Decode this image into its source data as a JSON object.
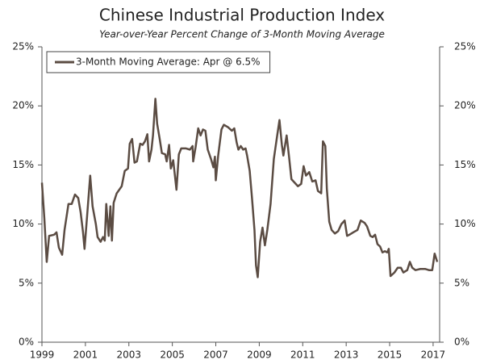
{
  "chart_data": {
    "type": "line",
    "title": "Chinese Industrial Production Index",
    "subtitle": "Year-over-Year Percent Change of 3-Month Moving Average",
    "x": [
      1999.0,
      1999.11,
      1999.22,
      1999.33,
      1999.56,
      1999.67,
      1999.78,
      1999.93,
      2000.04,
      2000.22,
      2000.37,
      2000.52,
      2000.67,
      2000.78,
      2000.89,
      2000.96,
      2001.07,
      2001.22,
      2001.33,
      2001.48,
      2001.56,
      2001.7,
      2001.81,
      2001.89,
      2001.96,
      2002.07,
      2002.15,
      2002.22,
      2002.3,
      2002.44,
      2002.67,
      2002.81,
      2002.96,
      2003.04,
      2003.15,
      2003.26,
      2003.37,
      2003.52,
      2003.63,
      2003.74,
      2003.85,
      2003.93,
      2004.04,
      2004.11,
      2004.22,
      2004.3,
      2004.41,
      2004.52,
      2004.67,
      2004.74,
      2004.85,
      2004.93,
      2005.04,
      2005.19,
      2005.3,
      2005.41,
      2005.63,
      2005.81,
      2005.93,
      2005.96,
      2006.07,
      2006.19,
      2006.3,
      2006.41,
      2006.52,
      2006.63,
      2006.78,
      2006.89,
      2006.96,
      2007.0,
      2007.11,
      2007.26,
      2007.37,
      2007.56,
      2007.74,
      2007.85,
      2007.96,
      2008.04,
      2008.15,
      2008.26,
      2008.37,
      2008.44,
      2008.56,
      2008.67,
      2008.78,
      2008.85,
      2008.93,
      2009.04,
      2009.15,
      2009.26,
      2009.37,
      2009.52,
      2009.67,
      2009.81,
      2009.93,
      2010.04,
      2010.11,
      2010.26,
      2010.37,
      2010.48,
      2010.63,
      2010.78,
      2010.93,
      2011.04,
      2011.15,
      2011.3,
      2011.44,
      2011.59,
      2011.7,
      2011.85,
      2011.93,
      2012.04,
      2012.11,
      2012.22,
      2012.33,
      2012.48,
      2012.63,
      2012.78,
      2012.93,
      2013.04,
      2013.15,
      2013.33,
      2013.52,
      2013.67,
      2013.85,
      2013.96,
      2014.11,
      2014.22,
      2014.33,
      2014.44,
      2014.56,
      2014.67,
      2014.78,
      2014.89,
      2014.96,
      2015.04,
      2015.22,
      2015.37,
      2015.52,
      2015.63,
      2015.81,
      2015.93,
      2016.04,
      2016.19,
      2016.41,
      2016.63,
      2016.81,
      2016.96,
      2017.07,
      2017.19
    ],
    "series": [
      {
        "name": "3-Month Moving Average: Apr @ 6.5%",
        "color": "#5b4c43",
        "values": [
          13.5,
          10.5,
          6.8,
          9.0,
          9.1,
          9.3,
          8.0,
          7.4,
          9.5,
          11.7,
          11.7,
          12.5,
          12.2,
          11.0,
          9.3,
          7.9,
          10.5,
          14.1,
          11.5,
          10.0,
          8.9,
          8.5,
          8.9,
          8.6,
          11.7,
          9.0,
          11.5,
          8.6,
          11.8,
          12.6,
          13.2,
          14.5,
          14.7,
          16.8,
          17.2,
          15.2,
          15.3,
          16.8,
          16.7,
          17.0,
          17.6,
          15.3,
          16.3,
          17.5,
          20.6,
          18.5,
          17.3,
          16.0,
          15.9,
          15.3,
          16.7,
          14.7,
          15.4,
          12.9,
          15.9,
          16.4,
          16.4,
          16.3,
          16.6,
          15.3,
          16.5,
          18.1,
          17.5,
          18.0,
          17.9,
          16.3,
          15.5,
          14.8,
          15.7,
          13.7,
          15.8,
          18.0,
          18.4,
          18.2,
          17.9,
          18.1,
          16.9,
          16.3,
          16.6,
          16.3,
          16.4,
          15.8,
          14.5,
          12.1,
          9.5,
          6.5,
          5.5,
          8.5,
          9.7,
          8.2,
          9.5,
          11.7,
          15.5,
          17.3,
          18.8,
          16.7,
          15.8,
          17.5,
          15.7,
          13.8,
          13.5,
          13.2,
          13.4,
          14.9,
          14.1,
          14.4,
          13.6,
          13.7,
          12.8,
          12.6,
          17.0,
          16.6,
          13.0,
          10.2,
          9.5,
          9.2,
          9.4,
          10.0,
          10.3,
          9.0,
          9.1,
          9.3,
          9.5,
          10.3,
          10.1,
          9.8,
          9.0,
          8.9,
          9.1,
          8.3,
          8.1,
          7.6,
          7.7,
          7.6,
          7.9,
          5.6,
          5.9,
          6.3,
          6.3,
          5.9,
          6.1,
          6.8,
          6.3,
          6.1,
          6.2,
          6.2,
          6.1,
          6.1,
          7.5,
          6.8
        ]
      }
    ],
    "xlim": [
      1999,
      2017.3
    ],
    "xticks": [
      1999,
      2001,
      2003,
      2005,
      2007,
      2009,
      2011,
      2013,
      2015,
      2017
    ],
    "ylim": [
      0,
      25
    ],
    "yticks": [
      {
        "value": 0,
        "label": "0%"
      },
      {
        "value": 5,
        "label": "5%"
      },
      {
        "value": 10,
        "label": "10%"
      },
      {
        "value": 15,
        "label": "15%"
      },
      {
        "value": 20,
        "label": "20%"
      },
      {
        "value": 25,
        "label": "25%"
      }
    ],
    "y2lim": [
      0,
      25
    ],
    "y2ticks": [
      {
        "value": 0,
        "label": "0%"
      },
      {
        "value": 5,
        "label": "5%"
      },
      {
        "value": 10,
        "label": "10%"
      },
      {
        "value": 15,
        "label": "15%"
      },
      {
        "value": 20,
        "label": "20%"
      },
      {
        "value": 25,
        "label": "25%"
      }
    ],
    "legend": "top-left"
  }
}
